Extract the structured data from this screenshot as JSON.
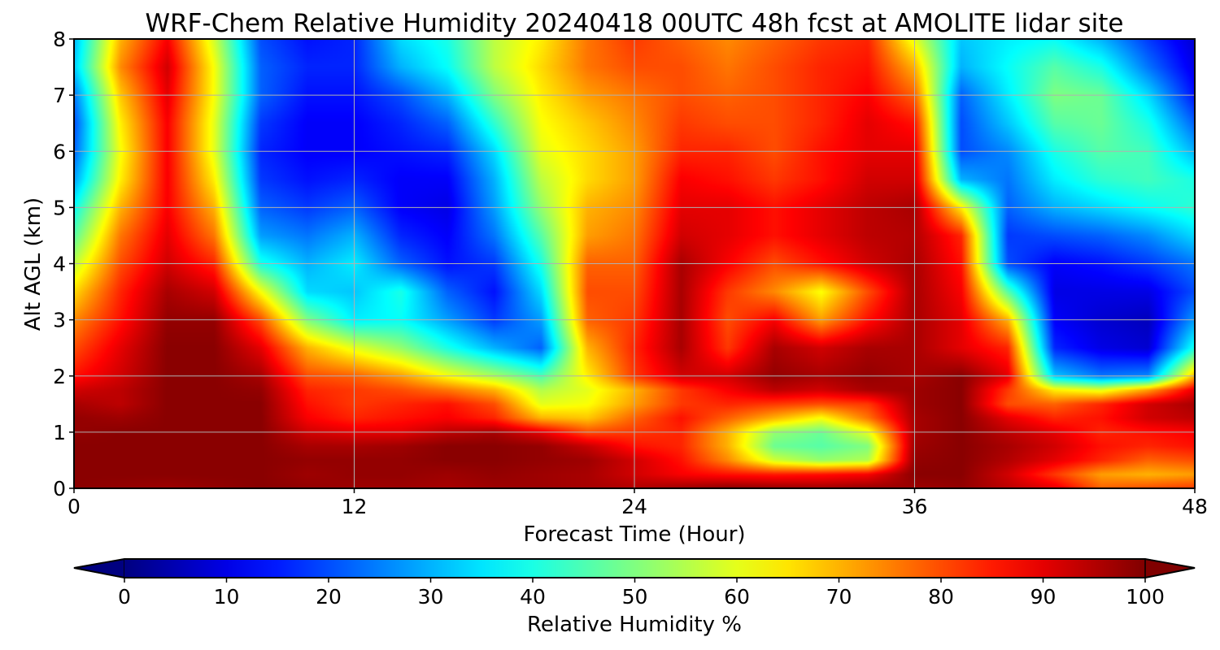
{
  "chart_data": {
    "type": "heatmap",
    "title": "WRF-Chem Relative Humidity 20240418 00UTC 48h fcst at AMOLITE lidar site",
    "xlabel": "Forecast Time (Hour)",
    "ylabel": "Alt AGL (km)",
    "xlim": [
      0,
      48
    ],
    "ylim": [
      0,
      8
    ],
    "x_ticks": [
      "0",
      "12",
      "24",
      "36",
      "48"
    ],
    "y_ticks": [
      "0",
      "1",
      "2",
      "3",
      "4",
      "5",
      "6",
      "7",
      "8"
    ],
    "grid": true,
    "colormap": "jet",
    "colorbar": {
      "label": "Relative Humidity %",
      "range": [
        0,
        100
      ],
      "ticks": [
        "0",
        "10",
        "20",
        "30",
        "40",
        "50",
        "60",
        "70",
        "80",
        "90",
        "100"
      ],
      "extend": "both",
      "orientation": "horizontal"
    },
    "x_hours": [
      0,
      2,
      4,
      6,
      8,
      10,
      12,
      14,
      16,
      18,
      20,
      22,
      24,
      26,
      28,
      30,
      32,
      34,
      36,
      38,
      40,
      42,
      44,
      46,
      48
    ],
    "y_km": [
      0,
      0.25,
      0.5,
      0.75,
      1,
      1.25,
      1.5,
      1.75,
      2,
      2.5,
      3,
      3.5,
      4,
      4.5,
      5,
      5.5,
      6,
      6.5,
      7,
      7.5,
      8
    ],
    "values": [
      [
        99,
        98,
        97,
        98,
        99,
        98,
        97,
        97,
        96,
        97,
        97,
        96,
        95,
        97,
        99,
        98,
        97,
        98,
        97,
        98,
        94,
        90,
        78,
        80,
        82
      ],
      [
        99,
        99,
        99,
        99,
        99,
        97,
        98,
        98,
        97,
        98,
        97,
        96,
        92,
        88,
        86,
        85,
        86,
        88,
        99,
        99,
        92,
        82,
        72,
        70,
        72
      ],
      [
        99,
        99,
        99,
        99,
        99,
        98,
        98,
        98,
        99,
        99,
        98,
        97,
        92,
        86,
        74,
        58,
        52,
        55,
        98,
        99,
        95,
        90,
        84,
        78,
        80
      ],
      [
        99,
        99,
        99,
        99,
        99,
        96,
        96,
        97,
        99,
        99,
        98,
        93,
        86,
        84,
        70,
        48,
        46,
        50,
        97,
        99,
        96,
        92,
        86,
        84,
        86
      ],
      [
        98,
        99,
        99,
        99,
        99,
        92,
        90,
        90,
        94,
        96,
        90,
        80,
        82,
        84,
        70,
        52,
        48,
        60,
        96,
        99,
        94,
        90,
        84,
        86,
        88
      ],
      [
        98,
        97,
        99,
        99,
        99,
        88,
        84,
        86,
        88,
        84,
        70,
        68,
        78,
        86,
        78,
        70,
        62,
        76,
        96,
        99,
        90,
        84,
        86,
        92,
        94
      ],
      [
        96,
        94,
        99,
        99,
        99,
        86,
        82,
        84,
        86,
        80,
        60,
        62,
        72,
        82,
        84,
        82,
        80,
        82,
        97,
        99,
        80,
        78,
        84,
        92,
        96
      ],
      [
        92,
        94,
        99,
        99,
        98,
        84,
        82,
        80,
        76,
        70,
        55,
        60,
        70,
        82,
        88,
        94,
        92,
        96,
        97,
        99,
        82,
        64,
        60,
        72,
        90
      ],
      [
        86,
        92,
        99,
        99,
        96,
        80,
        78,
        72,
        62,
        54,
        45,
        64,
        82,
        92,
        92,
        98,
        96,
        98,
        96,
        99,
        90,
        32,
        24,
        26,
        70
      ],
      [
        80,
        90,
        99,
        99,
        90,
        70,
        60,
        52,
        40,
        30,
        22,
        70,
        84,
        96,
        82,
        96,
        92,
        96,
        96,
        90,
        84,
        16,
        10,
        8,
        40
      ],
      [
        74,
        86,
        98,
        98,
        80,
        50,
        36,
        38,
        28,
        18,
        28,
        78,
        82,
        96,
        80,
        88,
        72,
        86,
        96,
        90,
        70,
        12,
        8,
        6,
        28
      ],
      [
        66,
        84,
        96,
        92,
        62,
        34,
        32,
        40,
        22,
        14,
        34,
        80,
        80,
        96,
        82,
        74,
        62,
        80,
        96,
        88,
        46,
        10,
        10,
        10,
        20
      ],
      [
        56,
        80,
        92,
        84,
        40,
        30,
        36,
        22,
        14,
        18,
        40,
        78,
        78,
        96,
        88,
        80,
        86,
        92,
        96,
        86,
        20,
        12,
        14,
        18,
        24
      ],
      [
        46,
        76,
        90,
        76,
        28,
        24,
        30,
        16,
        12,
        24,
        46,
        72,
        76,
        92,
        90,
        86,
        90,
        94,
        95,
        84,
        18,
        20,
        22,
        26,
        34
      ],
      [
        38,
        70,
        88,
        70,
        22,
        18,
        22,
        12,
        10,
        28,
        52,
        70,
        74,
        90,
        90,
        86,
        90,
        94,
        96,
        64,
        22,
        30,
        34,
        38,
        42
      ],
      [
        28,
        64,
        88,
        64,
        18,
        14,
        16,
        12,
        12,
        30,
        56,
        66,
        72,
        88,
        86,
        82,
        86,
        92,
        92,
        30,
        24,
        36,
        42,
        44,
        40
      ],
      [
        22,
        62,
        88,
        60,
        16,
        12,
        12,
        14,
        16,
        34,
        60,
        66,
        72,
        84,
        84,
        80,
        86,
        90,
        90,
        20,
        26,
        40,
        46,
        44,
        30
      ],
      [
        20,
        64,
        88,
        60,
        18,
        12,
        12,
        16,
        22,
        42,
        62,
        68,
        74,
        82,
        80,
        80,
        84,
        90,
        86,
        20,
        32,
        46,
        48,
        40,
        22
      ],
      [
        24,
        68,
        90,
        62,
        22,
        14,
        14,
        20,
        30,
        50,
        64,
        72,
        76,
        80,
        78,
        80,
        84,
        88,
        78,
        22,
        36,
        50,
        48,
        34,
        14
      ],
      [
        32,
        74,
        92,
        62,
        22,
        16,
        16,
        30,
        38,
        56,
        66,
        76,
        80,
        80,
        76,
        80,
        84,
        86,
        70,
        30,
        38,
        46,
        40,
        24,
        10
      ],
      [
        30,
        70,
        88,
        58,
        20,
        14,
        16,
        34,
        40,
        56,
        64,
        76,
        82,
        78,
        74,
        78,
        82,
        84,
        60,
        32,
        36,
        38,
        30,
        18,
        8
      ]
    ]
  }
}
